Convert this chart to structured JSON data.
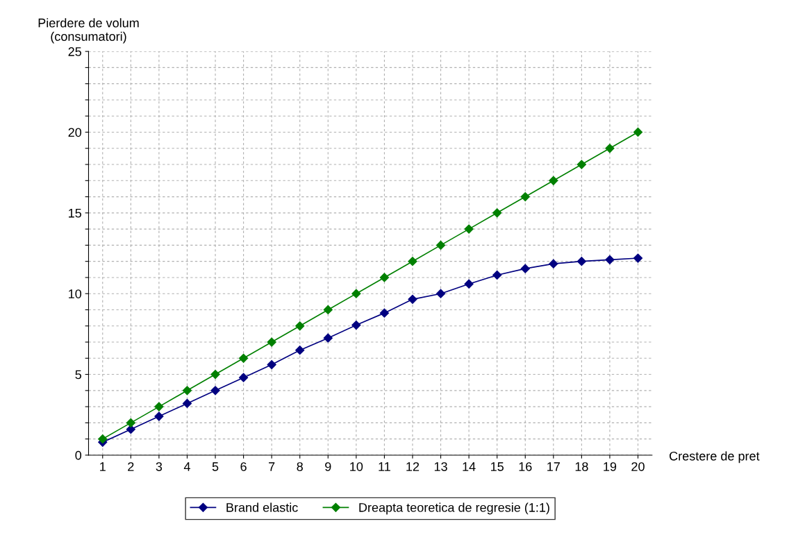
{
  "chart_data": {
    "type": "line",
    "xlabel": "Crestere de pret",
    "ylabel": "Pierdere de volum\n(consumatori)",
    "categories": [
      "1",
      "2",
      "3",
      "4",
      "5",
      "6",
      "7",
      "8",
      "9",
      "10",
      "11",
      "12",
      "13",
      "14",
      "15",
      "16",
      "17",
      "18",
      "19",
      "20"
    ],
    "series": [
      {
        "name": "Brand elastic",
        "color": "#000080",
        "values": [
          0.8,
          1.6,
          2.4,
          3.2,
          4.0,
          4.8,
          5.6,
          6.5,
          7.25,
          8.05,
          8.8,
          9.65,
          10.0,
          10.6,
          11.15,
          11.55,
          11.85,
          12.0,
          12.1,
          12.2
        ]
      },
      {
        "name": "Dreapta teoretica de regresie (1:1)",
        "color": "#008000",
        "values": [
          1,
          2,
          3,
          4,
          5,
          6,
          7,
          8,
          9,
          10,
          11,
          12,
          13,
          14,
          15,
          16,
          17,
          18,
          19,
          20
        ]
      }
    ],
    "ylim": [
      0,
      25
    ],
    "yticks": [
      0,
      {
        "value": 1,
        "label": null
      },
      {
        "value": 2,
        "label": null
      },
      {
        "value": 3,
        "label": null
      },
      {
        "value": 4,
        "label": null
      },
      5,
      {
        "value": 6,
        "label": null
      },
      {
        "value": 7,
        "label": null
      },
      {
        "value": 8,
        "label": null
      },
      {
        "value": 9,
        "label": null
      },
      10,
      {
        "value": 11,
        "label": null
      },
      {
        "value": 12,
        "label": null
      },
      {
        "value": 13,
        "label": null
      },
      {
        "value": 14,
        "label": null
      },
      15,
      {
        "value": 16,
        "label": null
      },
      {
        "value": 17,
        "label": null
      },
      {
        "value": 18,
        "label": null
      },
      {
        "value": 19,
        "label": null
      },
      20,
      {
        "value": 21,
        "label": null
      },
      {
        "value": 22,
        "label": null
      },
      {
        "value": 23,
        "label": null
      },
      {
        "value": 24,
        "label": null
      },
      25
    ],
    "grid": true,
    "legend": "bottom",
    "marker": "diamond",
    "line_style": "solid"
  }
}
